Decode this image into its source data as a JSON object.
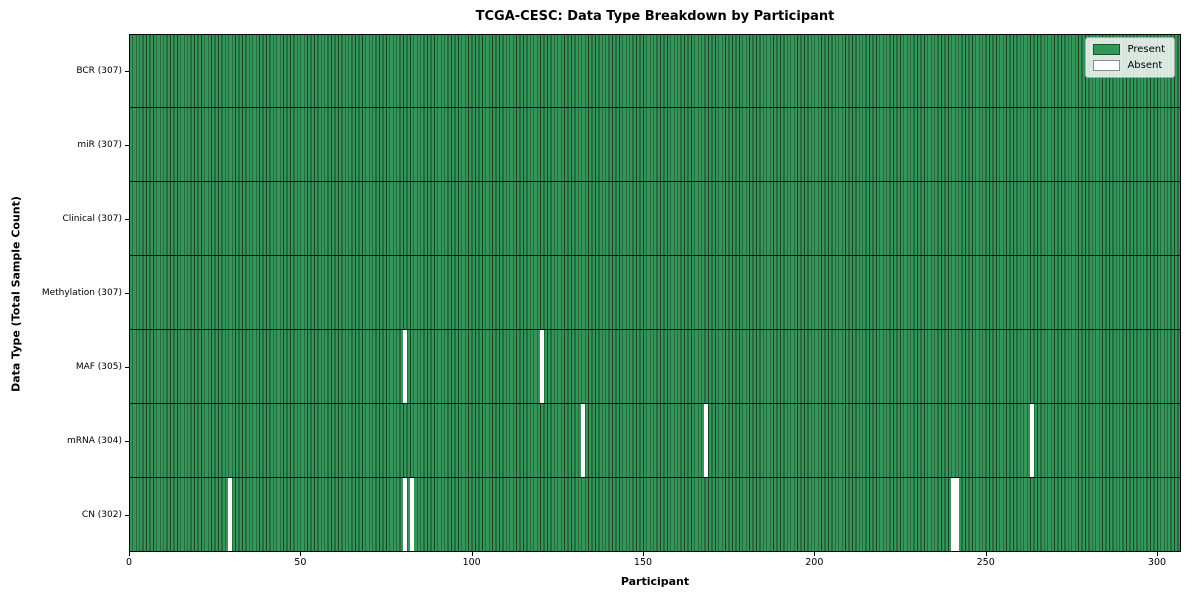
{
  "chart_data": {
    "type": "heatmap",
    "title": "TCGA-CESC: Data Type Breakdown by Participant",
    "xlabel": "Participant",
    "ylabel": "Data Type (Total Sample Count)",
    "n_participants": 307,
    "x_ticks": [
      0,
      50,
      100,
      150,
      200,
      250,
      300
    ],
    "rows": [
      {
        "label": "BCR (307)",
        "total": 307,
        "absent_participants": []
      },
      {
        "label": "miR (307)",
        "total": 307,
        "absent_participants": []
      },
      {
        "label": "Clinical (307)",
        "total": 307,
        "absent_participants": []
      },
      {
        "label": "Methylation (307)",
        "total": 307,
        "absent_participants": []
      },
      {
        "label": "MAF (305)",
        "total": 305,
        "absent_participants": [
          80,
          120
        ]
      },
      {
        "label": "mRNA (304)",
        "total": 304,
        "absent_participants": [
          132,
          168,
          263
        ]
      },
      {
        "label": "CN (302)",
        "total": 302,
        "absent_participants": [
          29,
          80,
          82,
          240,
          241
        ]
      }
    ],
    "legend": {
      "present_label": "Present",
      "absent_label": "Absent"
    },
    "colors": {
      "present": "#349658",
      "absent": "#ffffff",
      "cell_edge": "#173f28",
      "row_divider": "#10100f"
    },
    "legend_position": "upper right",
    "grid": false
  }
}
